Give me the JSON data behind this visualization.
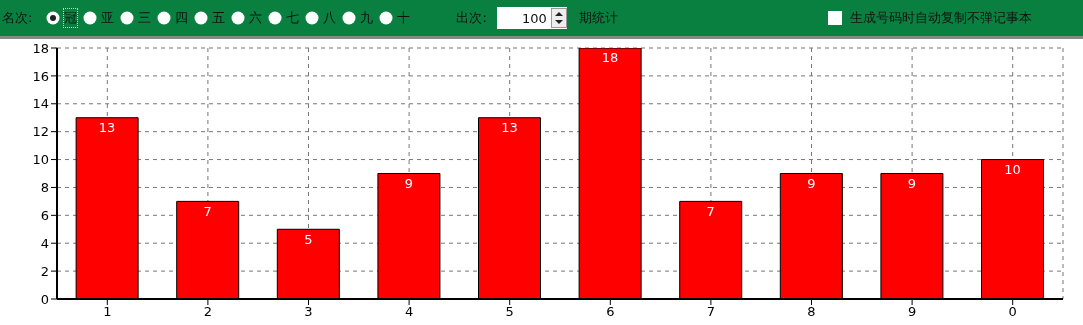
{
  "chart_data": {
    "type": "bar",
    "annotations": [
      "名次:",
      "冠",
      "亚",
      "三",
      "四",
      "五",
      "六",
      "七",
      "八",
      "九",
      "十",
      "出次:",
      "100",
      "期统计",
      "生成号码时自动复制不弹记事本"
    ],
    "categories": [
      "1",
      "2",
      "3",
      "4",
      "5",
      "6",
      "7",
      "8",
      "9",
      "0"
    ],
    "values": [
      13,
      7,
      5,
      9,
      13,
      18,
      7,
      9,
      9,
      10
    ],
    "color": "#ff0000",
    "ylim": [
      0,
      18
    ],
    "yticks": [
      0,
      2,
      4,
      6,
      8,
      10,
      12,
      14,
      16,
      18
    ],
    "grid": true,
    "data_labels": true
  }
}
